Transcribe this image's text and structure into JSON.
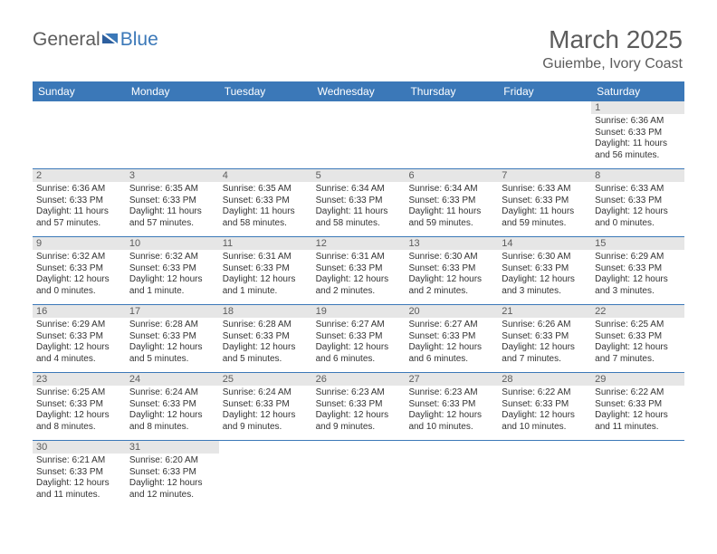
{
  "logo": {
    "general": "General",
    "blue": "Blue"
  },
  "title": "March 2025",
  "location": "Guiembe, Ivory Coast",
  "colors": {
    "header_bg": "#3b78b8",
    "header_text": "#ffffff",
    "daynum_bg": "#e6e6e6",
    "text": "#333333",
    "muted": "#5c5c5c"
  },
  "day_headers": [
    "Sunday",
    "Monday",
    "Tuesday",
    "Wednesday",
    "Thursday",
    "Friday",
    "Saturday"
  ],
  "weeks": [
    [
      null,
      null,
      null,
      null,
      null,
      null,
      {
        "n": "1",
        "sr": "Sunrise: 6:36 AM",
        "ss": "Sunset: 6:33 PM",
        "d1": "Daylight: 11 hours",
        "d2": "and 56 minutes."
      }
    ],
    [
      {
        "n": "2",
        "sr": "Sunrise: 6:36 AM",
        "ss": "Sunset: 6:33 PM",
        "d1": "Daylight: 11 hours",
        "d2": "and 57 minutes."
      },
      {
        "n": "3",
        "sr": "Sunrise: 6:35 AM",
        "ss": "Sunset: 6:33 PM",
        "d1": "Daylight: 11 hours",
        "d2": "and 57 minutes."
      },
      {
        "n": "4",
        "sr": "Sunrise: 6:35 AM",
        "ss": "Sunset: 6:33 PM",
        "d1": "Daylight: 11 hours",
        "d2": "and 58 minutes."
      },
      {
        "n": "5",
        "sr": "Sunrise: 6:34 AM",
        "ss": "Sunset: 6:33 PM",
        "d1": "Daylight: 11 hours",
        "d2": "and 58 minutes."
      },
      {
        "n": "6",
        "sr": "Sunrise: 6:34 AM",
        "ss": "Sunset: 6:33 PM",
        "d1": "Daylight: 11 hours",
        "d2": "and 59 minutes."
      },
      {
        "n": "7",
        "sr": "Sunrise: 6:33 AM",
        "ss": "Sunset: 6:33 PM",
        "d1": "Daylight: 11 hours",
        "d2": "and 59 minutes."
      },
      {
        "n": "8",
        "sr": "Sunrise: 6:33 AM",
        "ss": "Sunset: 6:33 PM",
        "d1": "Daylight: 12 hours",
        "d2": "and 0 minutes."
      }
    ],
    [
      {
        "n": "9",
        "sr": "Sunrise: 6:32 AM",
        "ss": "Sunset: 6:33 PM",
        "d1": "Daylight: 12 hours",
        "d2": "and 0 minutes."
      },
      {
        "n": "10",
        "sr": "Sunrise: 6:32 AM",
        "ss": "Sunset: 6:33 PM",
        "d1": "Daylight: 12 hours",
        "d2": "and 1 minute."
      },
      {
        "n": "11",
        "sr": "Sunrise: 6:31 AM",
        "ss": "Sunset: 6:33 PM",
        "d1": "Daylight: 12 hours",
        "d2": "and 1 minute."
      },
      {
        "n": "12",
        "sr": "Sunrise: 6:31 AM",
        "ss": "Sunset: 6:33 PM",
        "d1": "Daylight: 12 hours",
        "d2": "and 2 minutes."
      },
      {
        "n": "13",
        "sr": "Sunrise: 6:30 AM",
        "ss": "Sunset: 6:33 PM",
        "d1": "Daylight: 12 hours",
        "d2": "and 2 minutes."
      },
      {
        "n": "14",
        "sr": "Sunrise: 6:30 AM",
        "ss": "Sunset: 6:33 PM",
        "d1": "Daylight: 12 hours",
        "d2": "and 3 minutes."
      },
      {
        "n": "15",
        "sr": "Sunrise: 6:29 AM",
        "ss": "Sunset: 6:33 PM",
        "d1": "Daylight: 12 hours",
        "d2": "and 3 minutes."
      }
    ],
    [
      {
        "n": "16",
        "sr": "Sunrise: 6:29 AM",
        "ss": "Sunset: 6:33 PM",
        "d1": "Daylight: 12 hours",
        "d2": "and 4 minutes."
      },
      {
        "n": "17",
        "sr": "Sunrise: 6:28 AM",
        "ss": "Sunset: 6:33 PM",
        "d1": "Daylight: 12 hours",
        "d2": "and 5 minutes."
      },
      {
        "n": "18",
        "sr": "Sunrise: 6:28 AM",
        "ss": "Sunset: 6:33 PM",
        "d1": "Daylight: 12 hours",
        "d2": "and 5 minutes."
      },
      {
        "n": "19",
        "sr": "Sunrise: 6:27 AM",
        "ss": "Sunset: 6:33 PM",
        "d1": "Daylight: 12 hours",
        "d2": "and 6 minutes."
      },
      {
        "n": "20",
        "sr": "Sunrise: 6:27 AM",
        "ss": "Sunset: 6:33 PM",
        "d1": "Daylight: 12 hours",
        "d2": "and 6 minutes."
      },
      {
        "n": "21",
        "sr": "Sunrise: 6:26 AM",
        "ss": "Sunset: 6:33 PM",
        "d1": "Daylight: 12 hours",
        "d2": "and 7 minutes."
      },
      {
        "n": "22",
        "sr": "Sunrise: 6:25 AM",
        "ss": "Sunset: 6:33 PM",
        "d1": "Daylight: 12 hours",
        "d2": "and 7 minutes."
      }
    ],
    [
      {
        "n": "23",
        "sr": "Sunrise: 6:25 AM",
        "ss": "Sunset: 6:33 PM",
        "d1": "Daylight: 12 hours",
        "d2": "and 8 minutes."
      },
      {
        "n": "24",
        "sr": "Sunrise: 6:24 AM",
        "ss": "Sunset: 6:33 PM",
        "d1": "Daylight: 12 hours",
        "d2": "and 8 minutes."
      },
      {
        "n": "25",
        "sr": "Sunrise: 6:24 AM",
        "ss": "Sunset: 6:33 PM",
        "d1": "Daylight: 12 hours",
        "d2": "and 9 minutes."
      },
      {
        "n": "26",
        "sr": "Sunrise: 6:23 AM",
        "ss": "Sunset: 6:33 PM",
        "d1": "Daylight: 12 hours",
        "d2": "and 9 minutes."
      },
      {
        "n": "27",
        "sr": "Sunrise: 6:23 AM",
        "ss": "Sunset: 6:33 PM",
        "d1": "Daylight: 12 hours",
        "d2": "and 10 minutes."
      },
      {
        "n": "28",
        "sr": "Sunrise: 6:22 AM",
        "ss": "Sunset: 6:33 PM",
        "d1": "Daylight: 12 hours",
        "d2": "and 10 minutes."
      },
      {
        "n": "29",
        "sr": "Sunrise: 6:22 AM",
        "ss": "Sunset: 6:33 PM",
        "d1": "Daylight: 12 hours",
        "d2": "and 11 minutes."
      }
    ],
    [
      {
        "n": "30",
        "sr": "Sunrise: 6:21 AM",
        "ss": "Sunset: 6:33 PM",
        "d1": "Daylight: 12 hours",
        "d2": "and 11 minutes."
      },
      {
        "n": "31",
        "sr": "Sunrise: 6:20 AM",
        "ss": "Sunset: 6:33 PM",
        "d1": "Daylight: 12 hours",
        "d2": "and 12 minutes."
      },
      null,
      null,
      null,
      null,
      null
    ]
  ]
}
